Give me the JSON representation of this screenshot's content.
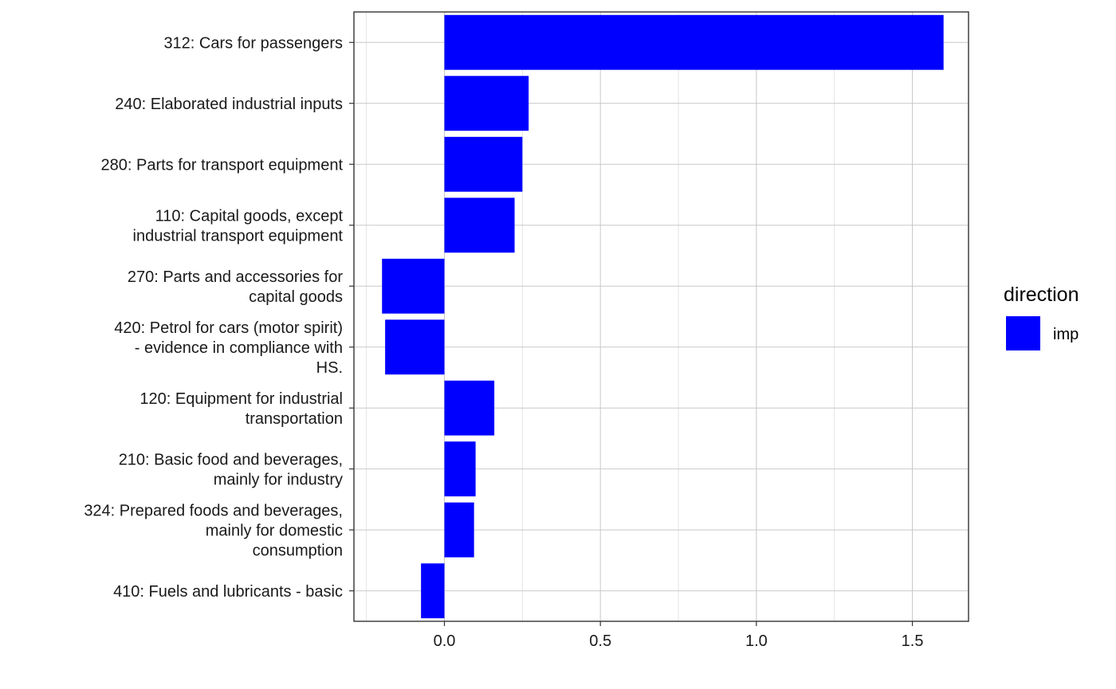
{
  "chart_data": {
    "type": "bar",
    "orientation": "horizontal",
    "categories": [
      [
        "312: Cars for passengers"
      ],
      [
        "240: Elaborated industrial inputs"
      ],
      [
        "280: Parts for transport equipment"
      ],
      [
        "110: Capital goods, except",
        "industrial transport equipment"
      ],
      [
        "270: Parts and accessories for",
        "capital goods"
      ],
      [
        "420: Petrol for cars (motor spirit)",
        "- evidence in compliance with",
        "HS."
      ],
      [
        "120: Equipment for industrial",
        "transportation"
      ],
      [
        "210: Basic food and beverages,",
        "mainly for industry"
      ],
      [
        "324: Prepared foods and beverages,",
        "mainly for domestic",
        "consumption"
      ],
      [
        "410: Fuels and lubricants - basic"
      ]
    ],
    "series": [
      {
        "name": "imp",
        "color": "#0000ff",
        "values": [
          1.6,
          0.27,
          0.25,
          0.225,
          -0.2,
          -0.19,
          0.16,
          0.1,
          0.095,
          -0.075
        ]
      }
    ],
    "xlim": [
      -0.29,
      1.68
    ],
    "xticks": [
      "0.0",
      "0.5",
      "1.0",
      "1.5"
    ],
    "xtick_values": [
      0.0,
      0.5,
      1.0,
      1.5
    ],
    "grid": true,
    "legend": {
      "title": "direction",
      "position": "right"
    }
  }
}
